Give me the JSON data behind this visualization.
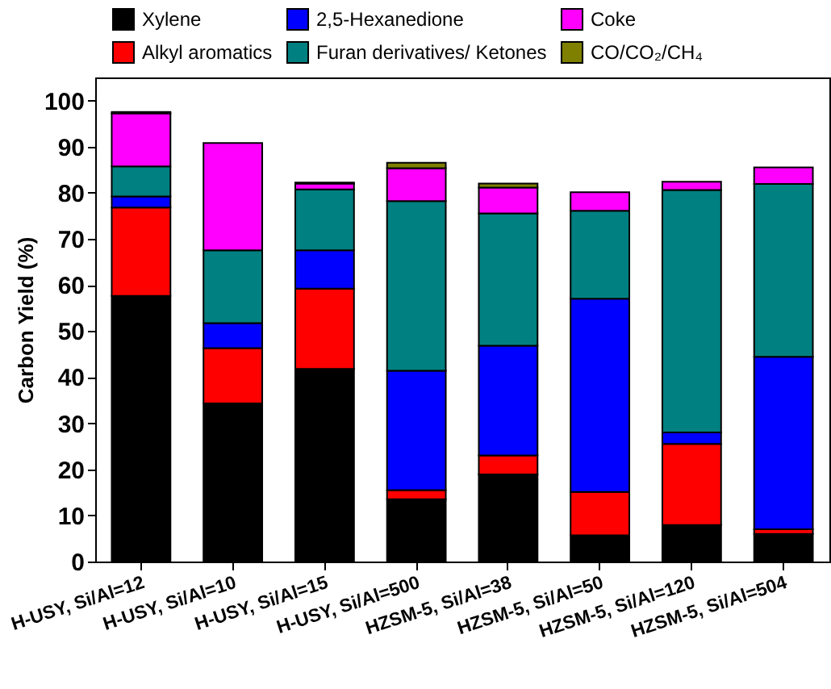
{
  "chart_data": {
    "type": "bar",
    "stacked": true,
    "ylabel": "Carbon Yield (%)",
    "categories": [
      "H-USY, Si/Al=12",
      "H-USY, Si/Al=10",
      "H-USY, Si/Al=15",
      "H-USY, Si/Al=500",
      "HZSM-5, Si/Al=38",
      "HZSM-5, Si/Al=50",
      "HZSM-5, Si/Al=120",
      "HZSM-5, Si/Al=504"
    ],
    "series": [
      {
        "name": "Xylene",
        "color": "#000000",
        "values": [
          57.6,
          34.3,
          41.8,
          13.5,
          18.9,
          5.7,
          7.9,
          6.0
        ]
      },
      {
        "name": "Alkyl aromatics",
        "color": "#ff0000",
        "values": [
          19.2,
          12.0,
          17.4,
          2.0,
          4.1,
          9.4,
          17.6,
          1.0
        ]
      },
      {
        "name": "2,5-Hexanedione",
        "color": "#0000ff",
        "values": [
          2.4,
          5.4,
          8.3,
          25.9,
          23.8,
          41.9,
          2.5,
          37.4
        ]
      },
      {
        "name": "Furan derivatives/ Ketones",
        "color": "#008080",
        "values": [
          6.5,
          15.8,
          13.2,
          36.8,
          28.7,
          19.1,
          52.6,
          37.5
        ]
      },
      {
        "name": "Coke",
        "color": "#ff00ff",
        "values": [
          11.5,
          23.3,
          1.3,
          7.1,
          5.6,
          4.0,
          1.8,
          3.6
        ]
      },
      {
        "name": "CO/CO₂/CH₄",
        "color": "#808000",
        "values": [
          0.3,
          null,
          0.2,
          1.2,
          0.9,
          null,
          null,
          null
        ]
      }
    ],
    "ylim": [
      0,
      105
    ],
    "yticks": [
      0,
      10,
      20,
      30,
      40,
      50,
      60,
      70,
      80,
      90,
      100
    ],
    "legend": "top"
  }
}
